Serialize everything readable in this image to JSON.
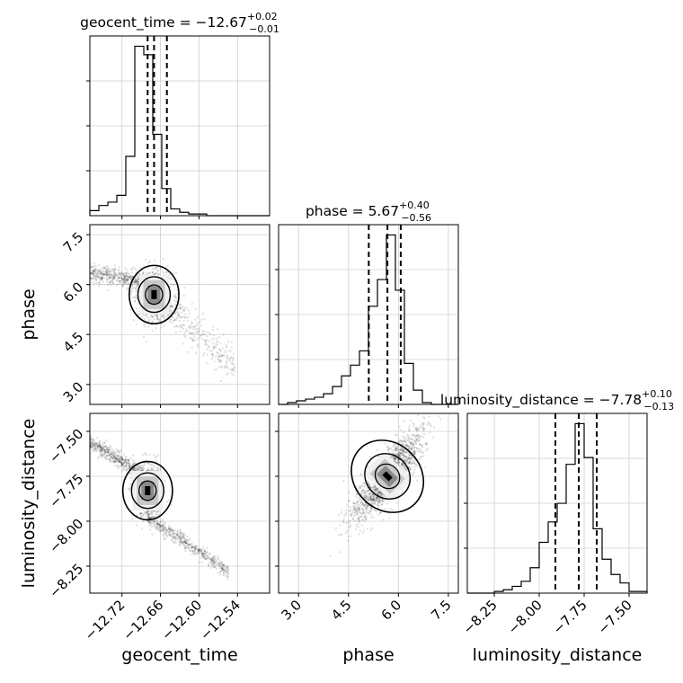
{
  "chart_data": {
    "type": "corner",
    "grid": true,
    "parameters": [
      {
        "name": "geocent_time",
        "xlabel": "geocent_time",
        "title": {
          "main": "geocent_time = −12.67",
          "sup": "+0.02",
          "sub": "−0.01"
        },
        "range": [
          -12.77,
          -12.49
        ],
        "ticks": [
          -12.72,
          -12.66,
          -12.6,
          -12.54
        ],
        "tick_labels": [
          "−12.72",
          "−12.66",
          "−12.60",
          "−12.54"
        ],
        "quantiles": [
          -12.68,
          -12.67,
          -12.65
        ],
        "hist_edges": [
          -12.77,
          -12.756,
          -12.742,
          -12.728,
          -12.714,
          -12.7,
          -12.686,
          -12.672,
          -12.658,
          -12.644,
          -12.63,
          -12.616,
          -12.602,
          -12.588,
          -12.574,
          -12.56,
          -12.546,
          -12.532,
          -12.518,
          -12.504,
          -12.49
        ],
        "hist_counts": [
          3,
          6,
          8,
          12,
          35,
          100,
          95,
          48,
          16,
          4,
          2,
          1,
          1,
          0,
          0,
          0,
          0,
          0,
          0,
          0
        ]
      },
      {
        "name": "phase",
        "ylabel": "phase",
        "xlabel": "phase",
        "title": {
          "main": "phase = 5.67",
          "sup": "+0.40",
          "sub": "−0.56"
        },
        "range": [
          2.4,
          7.8
        ],
        "ticks": [
          3.0,
          4.5,
          6.0,
          7.5
        ],
        "tick_labels": [
          "3.0",
          "4.5",
          "6.0",
          "7.5"
        ],
        "quantiles": [
          5.11,
          5.67,
          6.07
        ],
        "hist_edges": [
          2.4,
          2.67,
          2.94,
          3.21,
          3.48,
          3.75,
          4.02,
          4.29,
          4.56,
          4.83,
          5.1,
          5.37,
          5.64,
          5.91,
          6.18,
          6.45,
          6.72,
          6.99,
          7.26,
          7.53,
          7.8
        ],
        "hist_counts": [
          0,
          1,
          2,
          3,
          4,
          6,
          10,
          16,
          22,
          30,
          55,
          70,
          95,
          64,
          23,
          8,
          1,
          0,
          0,
          0
        ]
      },
      {
        "name": "luminosity_distance",
        "ylabel": "luminosity_distance",
        "xlabel": "luminosity_distance",
        "title": {
          "main": "luminosity_distance = −7.78",
          "sup": "+0.10",
          "sub": "−0.13"
        },
        "range": [
          -8.4,
          -7.4
        ],
        "ticks": [
          -8.25,
          -8.0,
          -7.75,
          -7.5
        ],
        "tick_labels": [
          "−8.25",
          "−8.00",
          "−7.75",
          "−7.50"
        ],
        "quantiles": [
          -7.91,
          -7.78,
          -7.68
        ],
        "hist_edges": [
          -8.4,
          -8.35,
          -8.3,
          -8.25,
          -8.2,
          -8.15,
          -8.1,
          -8.05,
          -8.0,
          -7.95,
          -7.9,
          -7.85,
          -7.8,
          -7.75,
          -7.7,
          -7.65,
          -7.6,
          -7.55,
          -7.5,
          -7.45,
          -7.4
        ],
        "hist_counts": [
          0,
          0,
          0,
          1,
          2,
          4,
          7,
          15,
          30,
          42,
          53,
          76,
          100,
          80,
          38,
          20,
          11,
          6,
          1,
          1
        ]
      }
    ],
    "joint_panels": [
      {
        "x": "geocent_time",
        "y": "phase",
        "mode": [
          -12.67,
          5.7
        ]
      },
      {
        "x": "geocent_time",
        "y": "luminosity_distance",
        "mode": [
          -12.68,
          -7.83
        ]
      },
      {
        "x": "phase",
        "y": "luminosity_distance",
        "mode": [
          5.67,
          -7.75
        ]
      }
    ]
  }
}
